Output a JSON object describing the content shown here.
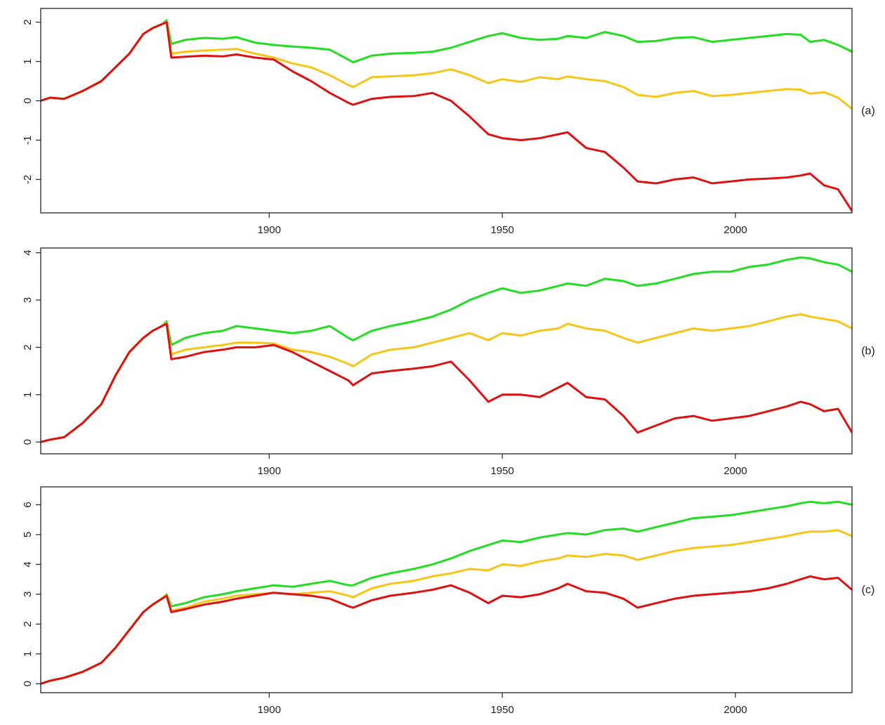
{
  "figure": {
    "panel_labels": [
      "(a)",
      "(b)",
      "(c)"
    ]
  },
  "chart_data": [
    {
      "type": "line",
      "panel_label": "(a)",
      "title": "",
      "xlabel": "",
      "ylabel": "",
      "xlim": [
        1851,
        2025
      ],
      "ylim": [
        -2.85,
        2.35
      ],
      "xticks": [
        1900,
        1950,
        2000
      ],
      "yticks": [
        -2,
        -1,
        0,
        1,
        2
      ],
      "grid": false,
      "legend": "none",
      "series": [
        {
          "color": "#22dd22",
          "x": [
            1851,
            1853,
            1856,
            1860,
            1864,
            1867,
            1870,
            1873,
            1875,
            1877,
            1878,
            1879,
            1882,
            1886,
            1890,
            1893,
            1897,
            1901,
            1905,
            1909,
            1913,
            1917,
            1918,
            1922,
            1926,
            1931,
            1935,
            1939,
            1943,
            1947,
            1950,
            1954,
            1958,
            1962,
            1964,
            1968,
            1972,
            1976,
            1979,
            1983,
            1987,
            1991,
            1995,
            1999,
            2003,
            2007,
            2011,
            2014,
            2016,
            2019,
            2022,
            2025
          ],
          "y": [
            0.0,
            0.08,
            0.05,
            0.25,
            0.5,
            0.85,
            1.2,
            1.7,
            1.85,
            1.95,
            2.05,
            1.45,
            1.55,
            1.6,
            1.58,
            1.62,
            1.48,
            1.42,
            1.38,
            1.35,
            1.3,
            1.05,
            0.98,
            1.15,
            1.2,
            1.22,
            1.25,
            1.35,
            1.5,
            1.65,
            1.72,
            1.6,
            1.55,
            1.58,
            1.65,
            1.6,
            1.75,
            1.65,
            1.5,
            1.52,
            1.6,
            1.62,
            1.5,
            1.55,
            1.6,
            1.65,
            1.7,
            1.68,
            1.5,
            1.55,
            1.42,
            1.25
          ]
        },
        {
          "color": "#f5c518",
          "x": [
            1851,
            1853,
            1856,
            1860,
            1864,
            1867,
            1870,
            1873,
            1875,
            1877,
            1878,
            1879,
            1882,
            1886,
            1890,
            1893,
            1897,
            1901,
            1905,
            1909,
            1913,
            1917,
            1918,
            1922,
            1926,
            1931,
            1935,
            1939,
            1943,
            1947,
            1950,
            1954,
            1958,
            1962,
            1964,
            1968,
            1972,
            1976,
            1979,
            1983,
            1987,
            1991,
            1995,
            1999,
            2003,
            2007,
            2011,
            2014,
            2016,
            2019,
            2022,
            2025
          ],
          "y": [
            0.0,
            0.08,
            0.05,
            0.25,
            0.5,
            0.85,
            1.2,
            1.7,
            1.85,
            1.95,
            2.02,
            1.2,
            1.25,
            1.28,
            1.3,
            1.32,
            1.2,
            1.1,
            0.95,
            0.85,
            0.65,
            0.4,
            0.35,
            0.6,
            0.62,
            0.65,
            0.7,
            0.8,
            0.65,
            0.45,
            0.55,
            0.48,
            0.6,
            0.55,
            0.62,
            0.55,
            0.5,
            0.35,
            0.15,
            0.1,
            0.2,
            0.25,
            0.12,
            0.15,
            0.2,
            0.25,
            0.3,
            0.28,
            0.18,
            0.22,
            0.08,
            -0.2
          ]
        },
        {
          "color": "#dd1111",
          "x": [
            1851,
            1853,
            1856,
            1860,
            1864,
            1867,
            1870,
            1873,
            1875,
            1877,
            1878,
            1879,
            1882,
            1886,
            1890,
            1893,
            1897,
            1901,
            1905,
            1909,
            1913,
            1917,
            1918,
            1922,
            1926,
            1931,
            1935,
            1939,
            1943,
            1947,
            1950,
            1954,
            1958,
            1962,
            1964,
            1968,
            1972,
            1976,
            1979,
            1983,
            1987,
            1991,
            1995,
            1999,
            2003,
            2007,
            2011,
            2014,
            2016,
            2019,
            2022,
            2025
          ],
          "y": [
            0.0,
            0.08,
            0.05,
            0.25,
            0.5,
            0.85,
            1.2,
            1.7,
            1.85,
            1.95,
            2.0,
            1.1,
            1.12,
            1.15,
            1.13,
            1.18,
            1.1,
            1.05,
            0.75,
            0.5,
            0.2,
            -0.05,
            -0.1,
            0.05,
            0.1,
            0.12,
            0.2,
            0.0,
            -0.4,
            -0.85,
            -0.95,
            -1.0,
            -0.95,
            -0.85,
            -0.8,
            -1.2,
            -1.3,
            -1.7,
            -2.05,
            -2.1,
            -2.0,
            -1.95,
            -2.1,
            -2.05,
            -2.0,
            -1.98,
            -1.95,
            -1.9,
            -1.85,
            -2.15,
            -2.25,
            -2.8
          ]
        }
      ]
    },
    {
      "type": "line",
      "panel_label": "(b)",
      "title": "",
      "xlabel": "",
      "ylabel": "",
      "xlim": [
        1851,
        2025
      ],
      "ylim": [
        -0.25,
        4.1
      ],
      "xticks": [
        1900,
        1950,
        2000
      ],
      "yticks": [
        0,
        1,
        2,
        3,
        4
      ],
      "grid": false,
      "legend": "none",
      "series": [
        {
          "color": "#22dd22",
          "x": [
            1851,
            1853,
            1856,
            1860,
            1864,
            1867,
            1870,
            1873,
            1875,
            1877,
            1878,
            1879,
            1882,
            1886,
            1890,
            1893,
            1897,
            1901,
            1905,
            1909,
            1913,
            1917,
            1918,
            1922,
            1926,
            1931,
            1935,
            1939,
            1943,
            1947,
            1950,
            1954,
            1958,
            1962,
            1964,
            1968,
            1972,
            1976,
            1979,
            1983,
            1987,
            1991,
            1995,
            1999,
            2003,
            2007,
            2011,
            2014,
            2016,
            2019,
            2022,
            2025
          ],
          "y": [
            0.0,
            0.05,
            0.1,
            0.4,
            0.8,
            1.4,
            1.9,
            2.2,
            2.35,
            2.45,
            2.55,
            2.05,
            2.2,
            2.3,
            2.35,
            2.45,
            2.4,
            2.35,
            2.3,
            2.35,
            2.45,
            2.2,
            2.15,
            2.35,
            2.45,
            2.55,
            2.65,
            2.8,
            3.0,
            3.15,
            3.25,
            3.15,
            3.2,
            3.3,
            3.35,
            3.3,
            3.45,
            3.4,
            3.3,
            3.35,
            3.45,
            3.55,
            3.6,
            3.6,
            3.7,
            3.75,
            3.85,
            3.9,
            3.88,
            3.8,
            3.75,
            3.6
          ]
        },
        {
          "color": "#f5c518",
          "x": [
            1851,
            1853,
            1856,
            1860,
            1864,
            1867,
            1870,
            1873,
            1875,
            1877,
            1878,
            1879,
            1882,
            1886,
            1890,
            1893,
            1897,
            1901,
            1905,
            1909,
            1913,
            1917,
            1918,
            1922,
            1926,
            1931,
            1935,
            1939,
            1943,
            1947,
            1950,
            1954,
            1958,
            1962,
            1964,
            1968,
            1972,
            1976,
            1979,
            1983,
            1987,
            1991,
            1995,
            1999,
            2003,
            2007,
            2011,
            2014,
            2016,
            2019,
            2022,
            2025
          ],
          "y": [
            0.0,
            0.05,
            0.1,
            0.4,
            0.8,
            1.4,
            1.9,
            2.2,
            2.35,
            2.45,
            2.52,
            1.85,
            1.95,
            2.0,
            2.05,
            2.1,
            2.1,
            2.08,
            1.95,
            1.9,
            1.8,
            1.65,
            1.6,
            1.85,
            1.95,
            2.0,
            2.1,
            2.2,
            2.3,
            2.15,
            2.3,
            2.25,
            2.35,
            2.4,
            2.5,
            2.4,
            2.35,
            2.2,
            2.1,
            2.2,
            2.3,
            2.4,
            2.35,
            2.4,
            2.45,
            2.55,
            2.65,
            2.7,
            2.65,
            2.6,
            2.55,
            2.4
          ]
        },
        {
          "color": "#dd1111",
          "x": [
            1851,
            1853,
            1856,
            1860,
            1864,
            1867,
            1870,
            1873,
            1875,
            1877,
            1878,
            1879,
            1882,
            1886,
            1890,
            1893,
            1897,
            1901,
            1905,
            1909,
            1913,
            1917,
            1918,
            1922,
            1926,
            1931,
            1935,
            1939,
            1943,
            1947,
            1950,
            1954,
            1958,
            1962,
            1964,
            1968,
            1972,
            1976,
            1979,
            1983,
            1987,
            1991,
            1995,
            1999,
            2003,
            2007,
            2011,
            2014,
            2016,
            2019,
            2022,
            2025
          ],
          "y": [
            0.0,
            0.05,
            0.1,
            0.4,
            0.8,
            1.4,
            1.9,
            2.2,
            2.35,
            2.45,
            2.5,
            1.75,
            1.8,
            1.9,
            1.95,
            2.0,
            2.0,
            2.05,
            1.9,
            1.7,
            1.5,
            1.3,
            1.2,
            1.45,
            1.5,
            1.55,
            1.6,
            1.7,
            1.3,
            0.85,
            1.0,
            1.0,
            0.95,
            1.15,
            1.25,
            0.95,
            0.9,
            0.55,
            0.2,
            0.35,
            0.5,
            0.55,
            0.45,
            0.5,
            0.55,
            0.65,
            0.75,
            0.85,
            0.8,
            0.65,
            0.7,
            0.2
          ]
        }
      ]
    },
    {
      "type": "line",
      "panel_label": "(c)",
      "title": "",
      "xlabel": "",
      "ylabel": "",
      "xlim": [
        1851,
        2025
      ],
      "ylim": [
        -0.3,
        6.6
      ],
      "xticks": [
        1900,
        1950,
        2000
      ],
      "yticks": [
        0,
        1,
        2,
        3,
        4,
        5,
        6
      ],
      "grid": false,
      "legend": "none",
      "series": [
        {
          "color": "#22dd22",
          "x": [
            1851,
            1853,
            1856,
            1860,
            1864,
            1867,
            1870,
            1873,
            1875,
            1877,
            1878,
            1879,
            1882,
            1886,
            1890,
            1893,
            1897,
            1901,
            1905,
            1909,
            1913,
            1917,
            1918,
            1922,
            1926,
            1931,
            1935,
            1939,
            1943,
            1947,
            1950,
            1954,
            1958,
            1962,
            1964,
            1968,
            1972,
            1976,
            1979,
            1983,
            1987,
            1991,
            1995,
            1999,
            2003,
            2007,
            2011,
            2014,
            2016,
            2019,
            2022,
            2025
          ],
          "y": [
            0.0,
            0.1,
            0.2,
            0.4,
            0.7,
            1.2,
            1.8,
            2.4,
            2.65,
            2.85,
            3.0,
            2.6,
            2.7,
            2.9,
            3.0,
            3.1,
            3.2,
            3.3,
            3.25,
            3.35,
            3.45,
            3.3,
            3.3,
            3.55,
            3.7,
            3.85,
            4.0,
            4.2,
            4.45,
            4.65,
            4.8,
            4.75,
            4.9,
            5.0,
            5.05,
            5.0,
            5.15,
            5.2,
            5.1,
            5.25,
            5.4,
            5.55,
            5.6,
            5.65,
            5.75,
            5.85,
            5.95,
            6.05,
            6.1,
            6.05,
            6.1,
            6.0
          ]
        },
        {
          "color": "#f5c518",
          "x": [
            1851,
            1853,
            1856,
            1860,
            1864,
            1867,
            1870,
            1873,
            1875,
            1877,
            1878,
            1879,
            1882,
            1886,
            1890,
            1893,
            1897,
            1901,
            1905,
            1909,
            1913,
            1917,
            1918,
            1922,
            1926,
            1931,
            1935,
            1939,
            1943,
            1947,
            1950,
            1954,
            1958,
            1962,
            1964,
            1968,
            1972,
            1976,
            1979,
            1983,
            1987,
            1991,
            1995,
            1999,
            2003,
            2007,
            2011,
            2014,
            2016,
            2019,
            2022,
            2025
          ],
          "y": [
            0.0,
            0.1,
            0.2,
            0.4,
            0.7,
            1.2,
            1.8,
            2.4,
            2.65,
            2.85,
            2.98,
            2.45,
            2.55,
            2.75,
            2.85,
            2.95,
            3.0,
            3.05,
            3.0,
            3.05,
            3.1,
            2.95,
            2.9,
            3.2,
            3.35,
            3.45,
            3.6,
            3.7,
            3.85,
            3.8,
            4.0,
            3.95,
            4.1,
            4.2,
            4.3,
            4.25,
            4.35,
            4.3,
            4.15,
            4.3,
            4.45,
            4.55,
            4.6,
            4.65,
            4.75,
            4.85,
            4.95,
            5.05,
            5.1,
            5.1,
            5.15,
            4.95
          ]
        },
        {
          "color": "#dd1111",
          "x": [
            1851,
            1853,
            1856,
            1860,
            1864,
            1867,
            1870,
            1873,
            1875,
            1877,
            1878,
            1879,
            1882,
            1886,
            1890,
            1893,
            1897,
            1901,
            1905,
            1909,
            1913,
            1917,
            1918,
            1922,
            1926,
            1931,
            1935,
            1939,
            1943,
            1947,
            1950,
            1954,
            1958,
            1962,
            1964,
            1968,
            1972,
            1976,
            1979,
            1983,
            1987,
            1991,
            1995,
            1999,
            2003,
            2007,
            2011,
            2014,
            2016,
            2019,
            2022,
            2025
          ],
          "y": [
            0.0,
            0.1,
            0.2,
            0.4,
            0.7,
            1.2,
            1.8,
            2.4,
            2.65,
            2.85,
            2.95,
            2.4,
            2.5,
            2.65,
            2.75,
            2.85,
            2.95,
            3.05,
            3.0,
            2.95,
            2.85,
            2.6,
            2.55,
            2.8,
            2.95,
            3.05,
            3.15,
            3.3,
            3.05,
            2.7,
            2.95,
            2.9,
            3.0,
            3.2,
            3.35,
            3.1,
            3.05,
            2.85,
            2.55,
            2.7,
            2.85,
            2.95,
            3.0,
            3.05,
            3.1,
            3.2,
            3.35,
            3.5,
            3.6,
            3.5,
            3.55,
            3.15
          ]
        }
      ]
    }
  ]
}
